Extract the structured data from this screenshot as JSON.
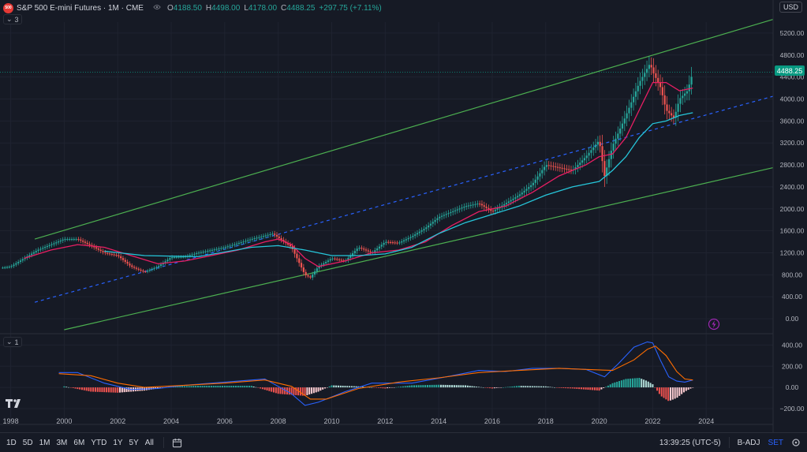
{
  "header": {
    "logo_text": "500",
    "symbol_title": "S&P 500 E-mini Futures · 1M · CME",
    "eye_icon": "eye-icon",
    "ohlc": [
      {
        "label": "O",
        "value": "4188.50"
      },
      {
        "label": "H",
        "value": "4498.00"
      },
      {
        "label": "L",
        "value": "4178.00"
      },
      {
        "label": "C",
        "value": "4488.25"
      }
    ],
    "change": "+297.75 (+7.11%)",
    "currency": "USD"
  },
  "panes": {
    "main_indicator_count": "3",
    "macd_indicator_count": "1"
  },
  "price_axis": {
    "ticks": [
      "5200.00",
      "4800.00",
      "4400.00",
      "4000.00",
      "3600.00",
      "3200.00",
      "2800.00",
      "2400.00",
      "2000.00",
      "1600.00",
      "1200.00",
      "800.00",
      "400.00",
      "0.00"
    ],
    "last_price": "4488.25",
    "last_price_color": "#089981"
  },
  "macd_axis": {
    "ticks": [
      "400.00",
      "200.00",
      "0.00",
      "−200.00"
    ]
  },
  "time_axis": {
    "ticks": [
      "1998",
      "2000",
      "2002",
      "2004",
      "2006",
      "2008",
      "2010",
      "2012",
      "2014",
      "2016",
      "2018",
      "2020",
      "2022",
      "2024"
    ]
  },
  "colors": {
    "up": "#26a69a",
    "down": "#ef5350",
    "ma_fast": "#e91e63",
    "ma_slow": "#26c6da",
    "channel": "#4caf50",
    "midline": "#2962ff",
    "macd": "#2962ff",
    "signal": "#ff6d00"
  },
  "chart_data": {
    "type": "line",
    "title": "S&P 500 E-mini Futures · 1M · CME",
    "x_axis_range": [
      1997.6,
      2026.5
    ],
    "y_axis_range": [
      -200,
      5400
    ],
    "close_series": {
      "name": "Close",
      "x": [
        1997.7,
        1998.0,
        1998.5,
        1999.0,
        1999.5,
        2000.0,
        2000.5,
        2001.0,
        2001.5,
        2002.0,
        2002.5,
        2003.0,
        2003.5,
        2004.0,
        2004.5,
        2005.0,
        2006.0,
        2007.0,
        2007.8,
        2008.5,
        2009.0,
        2009.2,
        2009.5,
        2010.0,
        2010.5,
        2011.0,
        2011.5,
        2012.0,
        2012.5,
        2013.0,
        2013.5,
        2014.0,
        2015.0,
        2015.5,
        2016.0,
        2016.5,
        2017.0,
        2017.5,
        2018.0,
        2018.5,
        2019.0,
        2019.5,
        2020.0,
        2020.2,
        2020.5,
        2021.0,
        2021.5,
        2021.9,
        2022.0,
        2022.3,
        2022.5,
        2022.8,
        2023.0,
        2023.3,
        2023.5
      ],
      "y": [
        930,
        950,
        1100,
        1250,
        1350,
        1450,
        1450,
        1330,
        1200,
        1150,
        950,
        850,
        950,
        1120,
        1130,
        1200,
        1300,
        1450,
        1550,
        1300,
        800,
        750,
        950,
        1100,
        1050,
        1300,
        1200,
        1400,
        1380,
        1500,
        1650,
        1850,
        2050,
        2100,
        1950,
        2100,
        2250,
        2450,
        2800,
        2750,
        2700,
        2950,
        3250,
        2600,
        3150,
        3700,
        4300,
        4650,
        4500,
        4200,
        3800,
        3650,
        4000,
        4150,
        4488
      ]
    },
    "ma_fast_series": {
      "x": [
        1998.5,
        1999.5,
        2000.5,
        2001.5,
        2002.5,
        2003.5,
        2004.5,
        2005.5,
        2006.5,
        2007.5,
        2008.0,
        2008.5,
        2009.0,
        2009.5,
        2010.5,
        2011.5,
        2012.5,
        2013.5,
        2014.5,
        2015.5,
        2016.5,
        2017.5,
        2018.5,
        2019.5,
        2020.0,
        2020.5,
        2021.0,
        2021.5,
        2022.0,
        2022.5,
        2023.0,
        2023.5
      ],
      "y": [
        1100,
        1250,
        1350,
        1300,
        1150,
        1000,
        1050,
        1150,
        1250,
        1400,
        1450,
        1350,
        1100,
        950,
        1050,
        1200,
        1250,
        1400,
        1700,
        1950,
        2050,
        2300,
        2600,
        2800,
        2950,
        3000,
        3300,
        3800,
        4300,
        4300,
        4150,
        4200
      ]
    },
    "ma_slow_series": {
      "x": [
        2001.5,
        2003.0,
        2005.0,
        2007.0,
        2008.0,
        2009.0,
        2010.0,
        2011.0,
        2012.0,
        2013.0,
        2014.0,
        2015.0,
        2016.0,
        2017.0,
        2018.0,
        2019.0,
        2020.0,
        2020.5,
        2021.0,
        2021.5,
        2022.0,
        2022.5,
        2023.0,
        2023.5
      ],
      "y": [
        1230,
        1150,
        1130,
        1300,
        1330,
        1250,
        1150,
        1150,
        1180,
        1300,
        1550,
        1750,
        1900,
        2050,
        2250,
        2400,
        2500,
        2700,
        2950,
        3300,
        3550,
        3600,
        3700,
        3750
      ]
    },
    "channel_upper": {
      "x": [
        1998.9,
        2026.5
      ],
      "y": [
        1450,
        5450
      ]
    },
    "channel_lower": {
      "x": [
        2000.0,
        2026.5
      ],
      "y": [
        -200,
        2750
      ]
    },
    "channel_mid": {
      "x": [
        1998.9,
        2026.5
      ],
      "y": [
        300,
        4050
      ]
    },
    "macd_series": {
      "name": "MACD",
      "x": [
        1999.8,
        2000.5,
        2001.5,
        2002.5,
        2003.5,
        2004.5,
        2006.0,
        2007.5,
        2008.5,
        2009.0,
        2009.5,
        2010.5,
        2011.5,
        2013.0,
        2014.5,
        2015.5,
        2016.5,
        2017.5,
        2018.5,
        2019.5,
        2020.2,
        2020.7,
        2021.3,
        2021.8,
        2022.0,
        2022.3,
        2022.6,
        2022.9,
        2023.2,
        2023.5
      ],
      "y": [
        140,
        140,
        40,
        -20,
        -10,
        20,
        50,
        80,
        -60,
        -170,
        -140,
        -40,
        40,
        40,
        110,
        160,
        150,
        180,
        180,
        170,
        100,
        220,
        380,
        430,
        420,
        250,
        100,
        60,
        50,
        70
      ]
    },
    "signal_series": {
      "name": "Signal",
      "x": [
        1999.8,
        2001.0,
        2002.0,
        2003.0,
        2004.5,
        2006.0,
        2007.5,
        2008.5,
        2009.2,
        2009.8,
        2011.0,
        2012.5,
        2014.0,
        2015.5,
        2017.0,
        2018.5,
        2019.5,
        2020.5,
        2021.3,
        2021.8,
        2022.1,
        2022.5,
        2022.9,
        2023.2,
        2023.5
      ],
      "y": [
        130,
        110,
        40,
        0,
        20,
        40,
        70,
        10,
        -110,
        -110,
        -10,
        50,
        90,
        140,
        160,
        180,
        170,
        160,
        260,
        360,
        390,
        300,
        150,
        80,
        70
      ]
    },
    "macd_histogram": {
      "x": [
        2000,
        2001,
        2002,
        2003,
        2004,
        2005,
        2006,
        2007,
        2008,
        2009,
        2009.5,
        2010,
        2011,
        2012,
        2013,
        2014,
        2015,
        2016,
        2017,
        2018,
        2018.5,
        2019,
        2020,
        2020.5,
        2021,
        2021.5,
        2021.8,
        2022,
        2022.3,
        2022.6,
        2022.9,
        2023.2,
        2023.5
      ],
      "y": [
        10,
        -40,
        -50,
        -30,
        10,
        15,
        15,
        15,
        -60,
        -80,
        -40,
        20,
        10,
        -10,
        20,
        25,
        20,
        -10,
        15,
        10,
        -5,
        -10,
        -30,
        40,
        80,
        90,
        60,
        30,
        -80,
        -130,
        -100,
        -40,
        0
      ]
    },
    "macd_y_range": [
      -230,
      470
    ]
  },
  "toolbar": {
    "timeframes": [
      "1D",
      "5D",
      "1M",
      "3M",
      "6M",
      "YTD",
      "1Y",
      "5Y",
      "All"
    ],
    "calendar_icon": "calendar-range-icon",
    "time": "13:39:25 (UTC-5)",
    "badj": "B-ADJ",
    "set": "SET",
    "settings_icon": "settings-icon"
  }
}
